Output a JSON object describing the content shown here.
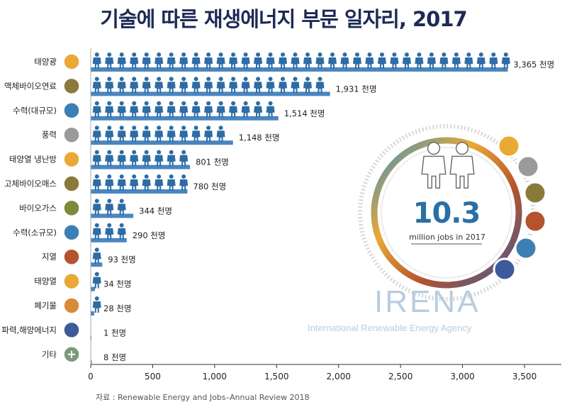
{
  "chart_data": {
    "type": "bar",
    "title": "기술에 따른 재생에너지 부문 일자리, 2017",
    "orientation": "horizontal",
    "categories": [
      "태양광",
      "액체바이오연료",
      "수력(대규모)",
      "풍력",
      "태양열 냉난방",
      "고체바이오매스",
      "바이오가스",
      "수력(소규모)",
      "지열",
      "태양열",
      "폐기물",
      "파력,해양에너지",
      "기타"
    ],
    "values": [
      3365,
      1931,
      1514,
      1148,
      801,
      780,
      344,
      290,
      93,
      34,
      28,
      1,
      8
    ],
    "value_labels": [
      "3,365 천명",
      "1,931 천명",
      "1,514 천명",
      "1,148 천명",
      "801 천명",
      "780 천명",
      "344 천명",
      "290 천명",
      "93 천명",
      "34 천명",
      "28 천명",
      "1 천명",
      "8 천명"
    ],
    "icons": [
      "sun-icon",
      "biofuel-drop-icon",
      "water-drop-icon",
      "wind-icon",
      "sun-icon",
      "biomass-leaf-icon",
      "biogas-leaf-icon",
      "water-drop-icon",
      "volcano-icon",
      "sun-icon",
      "waste-icon",
      "wave-icon",
      "plus-icon"
    ],
    "icon_colors": [
      "#e9a934",
      "#8a7a3a",
      "#3d7fb5",
      "#9a9a9a",
      "#e9a934",
      "#8a7a3a",
      "#7d8a3a",
      "#3d7fb5",
      "#b5532e",
      "#e9a934",
      "#d98a3a",
      "#3d5a9a",
      "#7a9a7a"
    ],
    "xticks": [
      0,
      500,
      1000,
      1500,
      2000,
      2500,
      3000,
      3500
    ],
    "xtick_labels": [
      "0",
      "500",
      "1,000",
      "1,500",
      "2,000",
      "2,500",
      "3,000",
      "3,500"
    ],
    "xlim": [
      0,
      3700
    ],
    "person_unit": 100,
    "bar_color": "#4a86c0",
    "person_color": "#2d6ca5",
    "grid": false,
    "xlabel": "",
    "ylabel": ""
  },
  "hub": {
    "number": "10.3",
    "caption": "million jobs in 2017"
  },
  "watermark": {
    "name": "IRENA",
    "subtitle": "International Renewable Energy Agency"
  },
  "source": "자료 : Renewable Energy and Jobs–Annual Review 2018"
}
